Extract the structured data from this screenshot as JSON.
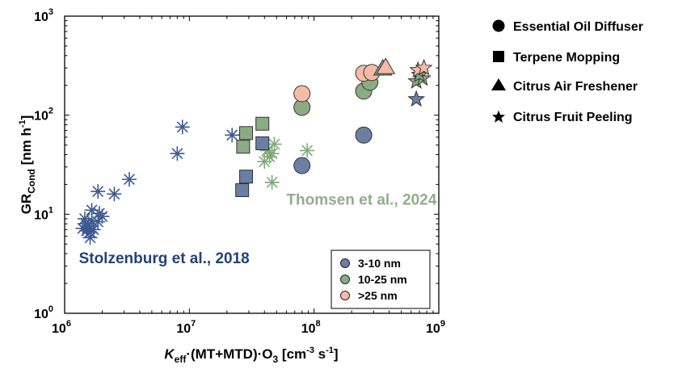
{
  "colors": {
    "small": "#6a7fa3",
    "medium": "#8aac83",
    "large": "#f5bba6",
    "star_blue": "#6a7fa3",
    "asterisk_blue": "#3d5990",
    "asterisk_green": "#7faa78",
    "annotation_blue": "#24427a",
    "annotation_green": "#8fae8a"
  },
  "chart_data": {
    "type": "scatter",
    "xscale": "log",
    "yscale": "log",
    "xlim": [
      1000000,
      1000000000
    ],
    "ylim": [
      1,
      1000
    ],
    "x_ticks": [
      {
        "base": "10",
        "exp": "6"
      },
      {
        "base": "10",
        "exp": "7"
      },
      {
        "base": "10",
        "exp": "8"
      },
      {
        "base": "10",
        "exp": "9"
      }
    ],
    "y_ticks": [
      {
        "base": "10",
        "exp": "0"
      },
      {
        "base": "10",
        "exp": "1"
      },
      {
        "base": "10",
        "exp": "2"
      },
      {
        "base": "10",
        "exp": "3"
      }
    ],
    "xlabel": {
      "k": "K",
      "k_sub": "eff",
      "mid": "·(MT+MTD)·O",
      "o_sub": "3",
      "unit_open": " [cm",
      "exp1": "-3",
      "unit_mid": " s",
      "exp2": "-1",
      "unit_close": "]"
    },
    "ylabel": {
      "gr": "GR",
      "gr_sub": "Cond",
      "unit_open": " [nm h",
      "exp": "-1",
      "unit_close": "]"
    },
    "marker_legend": [
      {
        "label": "Essential Oil Diffuser",
        "marker": "circle"
      },
      {
        "label": "Terpene Mopping",
        "marker": "square"
      },
      {
        "label": "Citrus Air Freshener",
        "marker": "triangle"
      },
      {
        "label": "Citrus Fruit Peeling",
        "marker": "star"
      }
    ],
    "size_legend": [
      {
        "label": "3-10 nm",
        "size_class": "small"
      },
      {
        "label": "10-25 nm",
        "size_class": "medium"
      },
      {
        "label": ">25 nm",
        "size_class": "large"
      }
    ],
    "annotations": [
      {
        "text": "Stolzenburg et al., 2018",
        "x": 1300000,
        "y": 3.2,
        "color_key": "annotation_blue"
      },
      {
        "text": "Thomsen et al., 2024",
        "x": 60000000,
        "y": 12.5,
        "color_key": "annotation_green"
      }
    ],
    "series": [
      {
        "source": "Stolzenburg et al., 2018",
        "marker": "asterisk",
        "color_key": "asterisk_blue",
        "points": [
          [
            1400000,
            7.2
          ],
          [
            1450000,
            9.0
          ],
          [
            1500000,
            6.8
          ],
          [
            1480000,
            8.0
          ],
          [
            1550000,
            7.6
          ],
          [
            1600000,
            5.8
          ],
          [
            1600000,
            6.6
          ],
          [
            1650000,
            8.6
          ],
          [
            1700000,
            7.0
          ],
          [
            1650000,
            11.0
          ],
          [
            1850000,
            8.4
          ],
          [
            1900000,
            10.2
          ],
          [
            2000000,
            9.5
          ],
          [
            1850000,
            17.0
          ],
          [
            2500000,
            16.0
          ],
          [
            3300000,
            22.5
          ],
          [
            8000000,
            41.0
          ],
          [
            8800000,
            76.0
          ],
          [
            22000000,
            63.0
          ]
        ]
      },
      {
        "source": "Thomsen et al., 2024",
        "marker": "asterisk",
        "color_key": "asterisk_green",
        "points": [
          [
            40000000,
            34.0
          ],
          [
            42000000,
            44.0
          ],
          [
            44000000,
            38.0
          ],
          [
            46000000,
            41.0
          ],
          [
            48000000,
            51.0
          ],
          [
            46000000,
            21.0
          ],
          [
            88000000,
            44.0
          ]
        ]
      },
      {
        "source": "Essential Oil Diffuser",
        "marker": "circle",
        "size_class": "small",
        "points": [
          [
            80000000,
            31.0
          ],
          [
            250000000,
            63.0
          ]
        ]
      },
      {
        "source": "Essential Oil Diffuser",
        "marker": "circle",
        "size_class": "medium",
        "points": [
          [
            80000000,
            120.0
          ],
          [
            250000000,
            175.0
          ],
          [
            280000000,
            215.0
          ]
        ]
      },
      {
        "source": "Essential Oil Diffuser",
        "marker": "circle",
        "size_class": "large",
        "points": [
          [
            80000000,
            165.0
          ],
          [
            250000000,
            265.0
          ],
          [
            290000000,
            270.0
          ]
        ]
      },
      {
        "source": "Terpene Mopping",
        "marker": "square",
        "size_class": "small",
        "points": [
          [
            26500000,
            17.5
          ],
          [
            28500000,
            24.0
          ],
          [
            38500000,
            52.0
          ]
        ]
      },
      {
        "source": "Terpene Mopping",
        "marker": "square",
        "size_class": "medium",
        "points": [
          [
            27000000,
            48.0
          ],
          [
            28500000,
            66.0
          ],
          [
            38500000,
            82.0
          ]
        ]
      },
      {
        "source": "Citrus Air Freshener",
        "marker": "triangle",
        "size_class": "medium",
        "points": [
          [
            355000000,
            295.0
          ]
        ]
      },
      {
        "source": "Citrus Air Freshener",
        "marker": "triangle",
        "size_class": "large",
        "points": [
          [
            375000000,
            305.0
          ]
        ]
      },
      {
        "source": "Citrus Fruit Peeling",
        "marker": "star",
        "size_class": "small",
        "points": [
          [
            660000000,
            145.0
          ]
        ]
      },
      {
        "source": "Citrus Fruit Peeling",
        "marker": "star",
        "size_class": "medium",
        "points": [
          [
            660000000,
            220.0
          ],
          [
            740000000,
            235.0
          ],
          [
            700000000,
            255.0
          ]
        ]
      },
      {
        "source": "Citrus Fruit Peeling",
        "marker": "star",
        "size_class": "large",
        "points": [
          [
            680000000,
            285.0
          ],
          [
            760000000,
            300.0
          ]
        ]
      }
    ]
  }
}
